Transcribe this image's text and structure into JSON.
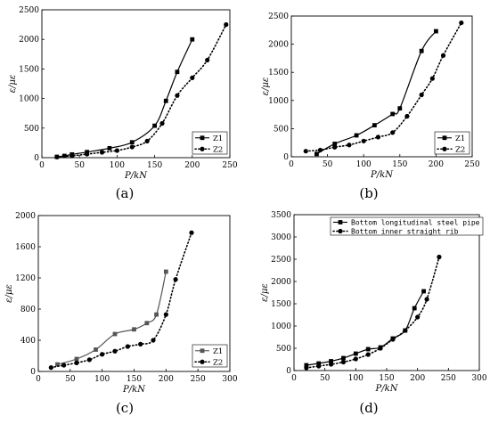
{
  "chart_data": [
    {
      "type": "line",
      "panel_label": "(a)",
      "xlabel": "P/kN",
      "ylabel": "ε/με",
      "xlim": [
        0,
        250
      ],
      "ylim": [
        0,
        2500
      ],
      "xticks": [
        "0",
        "50",
        "100",
        "150",
        "200",
        "250"
      ],
      "yticks": [
        "0",
        "500",
        "1000",
        "1500",
        "2000",
        "2500"
      ],
      "legend_position": "bottom-right",
      "series": [
        {
          "name": "Z1",
          "style": "solid",
          "marker": "square",
          "color": "#000000",
          "x": [
            20,
            30,
            40,
            60,
            90,
            120,
            150,
            165,
            180,
            200
          ],
          "y": [
            15,
            30,
            55,
            95,
            160,
            260,
            540,
            960,
            1450,
            2000
          ]
        },
        {
          "name": "Z2",
          "style": "dotted",
          "marker": "circle",
          "color": "#000000",
          "x": [
            20,
            40,
            60,
            80,
            100,
            120,
            140,
            160,
            180,
            200,
            220,
            245
          ],
          "y": [
            10,
            30,
            60,
            90,
            120,
            180,
            280,
            580,
            1050,
            1350,
            1650,
            2250
          ]
        }
      ]
    },
    {
      "type": "line",
      "panel_label": "(b)",
      "xlabel": "P/kN",
      "ylabel": "ε/με",
      "xlim": [
        0,
        250
      ],
      "ylim": [
        0,
        2500
      ],
      "xticks": [
        "0",
        "50",
        "100",
        "150",
        "200",
        "250"
      ],
      "yticks": [
        "0",
        "500",
        "1000",
        "1500",
        "2000",
        "2500"
      ],
      "legend_position": "bottom-right",
      "series": [
        {
          "name": "Z1",
          "style": "solid",
          "marker": "square",
          "color": "#000000",
          "x": [
            35,
            60,
            90,
            115,
            140,
            150,
            180,
            200
          ],
          "y": [
            50,
            230,
            380,
            560,
            760,
            860,
            1880,
            2230
          ]
        },
        {
          "name": "Z2",
          "style": "dotted",
          "marker": "circle",
          "color": "#000000",
          "x": [
            20,
            40,
            60,
            80,
            100,
            120,
            140,
            160,
            180,
            195,
            210,
            235
          ],
          "y": [
            100,
            120,
            170,
            210,
            280,
            350,
            430,
            720,
            1100,
            1390,
            1800,
            2380
          ]
        }
      ]
    },
    {
      "type": "line",
      "panel_label": "(c)",
      "xlabel": "P/kN",
      "ylabel": "ε/με",
      "xlim": [
        0,
        300
      ],
      "ylim": [
        0,
        2000
      ],
      "xticks": [
        "0",
        "50",
        "100",
        "150",
        "200",
        "250",
        "300"
      ],
      "yticks": [
        "0",
        "400",
        "800",
        "1200",
        "1600",
        "2000"
      ],
      "legend_position": "bottom-right",
      "series": [
        {
          "name": "Z1",
          "style": "solid",
          "marker": "square",
          "color": "#555555",
          "x": [
            30,
            60,
            90,
            120,
            150,
            170,
            185,
            200
          ],
          "y": [
            90,
            160,
            280,
            480,
            540,
            620,
            730,
            1280
          ]
        },
        {
          "name": "Z2",
          "style": "dotted",
          "marker": "circle",
          "color": "#000000",
          "x": [
            20,
            40,
            60,
            80,
            100,
            120,
            140,
            160,
            180,
            200,
            215,
            240
          ],
          "y": [
            50,
            80,
            110,
            150,
            220,
            260,
            320,
            350,
            400,
            730,
            1180,
            1780
          ]
        }
      ]
    },
    {
      "type": "line",
      "panel_label": "(d)",
      "xlabel": "P/kN",
      "ylabel": "ε/με",
      "xlim": [
        0,
        300
      ],
      "ylim": [
        0,
        3500
      ],
      "xticks": [
        "0",
        "50",
        "100",
        "150",
        "200",
        "250",
        "300"
      ],
      "yticks": [
        "0",
        "500",
        "1000",
        "1500",
        "2000",
        "2500",
        "3000",
        "3500"
      ],
      "legend_position": "top-left",
      "series": [
        {
          "name": "Bottom longitudinal steel pipe",
          "style": "solid",
          "marker": "square",
          "color": "#000000",
          "x": [
            20,
            40,
            60,
            80,
            100,
            120,
            140,
            160,
            180,
            195,
            210
          ],
          "y": [
            120,
            160,
            210,
            280,
            380,
            480,
            520,
            720,
            900,
            1400,
            1780
          ]
        },
        {
          "name": "Bottom inner straight rib",
          "style": "dotted",
          "marker": "circle",
          "color": "#000000",
          "x": [
            20,
            40,
            60,
            80,
            100,
            120,
            140,
            160,
            180,
            200,
            215,
            235
          ],
          "y": [
            60,
            100,
            140,
            190,
            260,
            360,
            500,
            700,
            900,
            1200,
            1600,
            2550
          ]
        }
      ]
    }
  ]
}
